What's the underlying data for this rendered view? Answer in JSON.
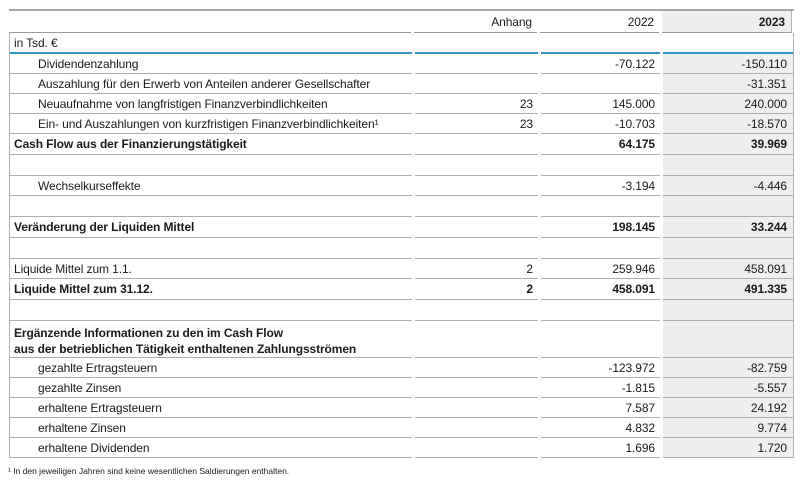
{
  "table": {
    "unit_label": "in Tsd. €",
    "columns": {
      "anhang": "Anhang",
      "y2022": "2022",
      "y2023": "2023"
    },
    "rows": [
      {
        "type": "indent",
        "label": "Dividendenzahlung",
        "anhang": "",
        "y2022": "-70.122",
        "y2023": "-150.110"
      },
      {
        "type": "indent",
        "label": "Auszahlung für den Erwerb von Anteilen anderer Gesellschafter",
        "anhang": "",
        "y2022": "",
        "y2023": "-31.351"
      },
      {
        "type": "indent",
        "label": "Neuaufnahme von langfristigen Finanzverbindlichkeiten",
        "anhang": "23",
        "y2022": "145.000",
        "y2023": "240.000"
      },
      {
        "type": "indent",
        "label": "Ein- und Auszahlungen von kurzfristigen Finanzverbindlichkeiten¹",
        "anhang": "23",
        "y2022": "-10.703",
        "y2023": "-18.570"
      },
      {
        "type": "bold",
        "label": "Cash Flow aus der Finanzierungstätigkeit",
        "anhang": "",
        "y2022": "64.175",
        "y2023": "39.969"
      },
      {
        "type": "empty",
        "label": "",
        "anhang": "",
        "y2022": "",
        "y2023": ""
      },
      {
        "type": "indent",
        "label": "Wechselkurseffekte",
        "anhang": "",
        "y2022": "-3.194",
        "y2023": "-4.446"
      },
      {
        "type": "empty",
        "label": "",
        "anhang": "",
        "y2022": "",
        "y2023": ""
      },
      {
        "type": "bold",
        "label": "Veränderung der Liquiden Mittel",
        "anhang": "",
        "y2022": "198.145",
        "y2023": "33.244"
      },
      {
        "type": "empty",
        "label": "",
        "anhang": "",
        "y2022": "",
        "y2023": ""
      },
      {
        "type": "normal",
        "label": "Liquide Mittel zum 1.1.",
        "anhang": "2",
        "y2022": "259.946",
        "y2023": "458.091"
      },
      {
        "type": "bold",
        "label": "Liquide Mittel zum 31.12.",
        "anhang": "2",
        "y2022": "458.091",
        "y2023": "491.335"
      },
      {
        "type": "empty",
        "label": "",
        "anhang": "",
        "y2022": "",
        "y2023": ""
      },
      {
        "type": "section",
        "label": "Ergänzende Informationen zu den im Cash Flow",
        "label2": "aus der betrieblichen Tätigkeit enthaltenen Zahlungsströmen",
        "anhang": "",
        "y2022": "",
        "y2023": ""
      },
      {
        "type": "indent",
        "label": "gezahlte Ertragsteuern",
        "anhang": "",
        "y2022": "-123.972",
        "y2023": "-82.759"
      },
      {
        "type": "indent",
        "label": "gezahlte Zinsen",
        "anhang": "",
        "y2022": "-1.815",
        "y2023": "-5.557"
      },
      {
        "type": "indent",
        "label": "erhaltene Ertragsteuern",
        "anhang": "",
        "y2022": "7.587",
        "y2023": "24.192"
      },
      {
        "type": "indent",
        "label": "erhaltene Zinsen",
        "anhang": "",
        "y2022": "4.832",
        "y2023": "9.774"
      },
      {
        "type": "indent",
        "label": "erhaltene Dividenden",
        "anhang": "",
        "y2022": "1.696",
        "y2023": "1.720"
      }
    ],
    "footnote": "¹ In den jeweiligen Jahren sind keine wesentlichen Saldierungen enthalten."
  },
  "colors": {
    "accent_line": "#2e96c6",
    "highlight_column_bg": "#efefef",
    "grid_line": "#aeaeae"
  }
}
